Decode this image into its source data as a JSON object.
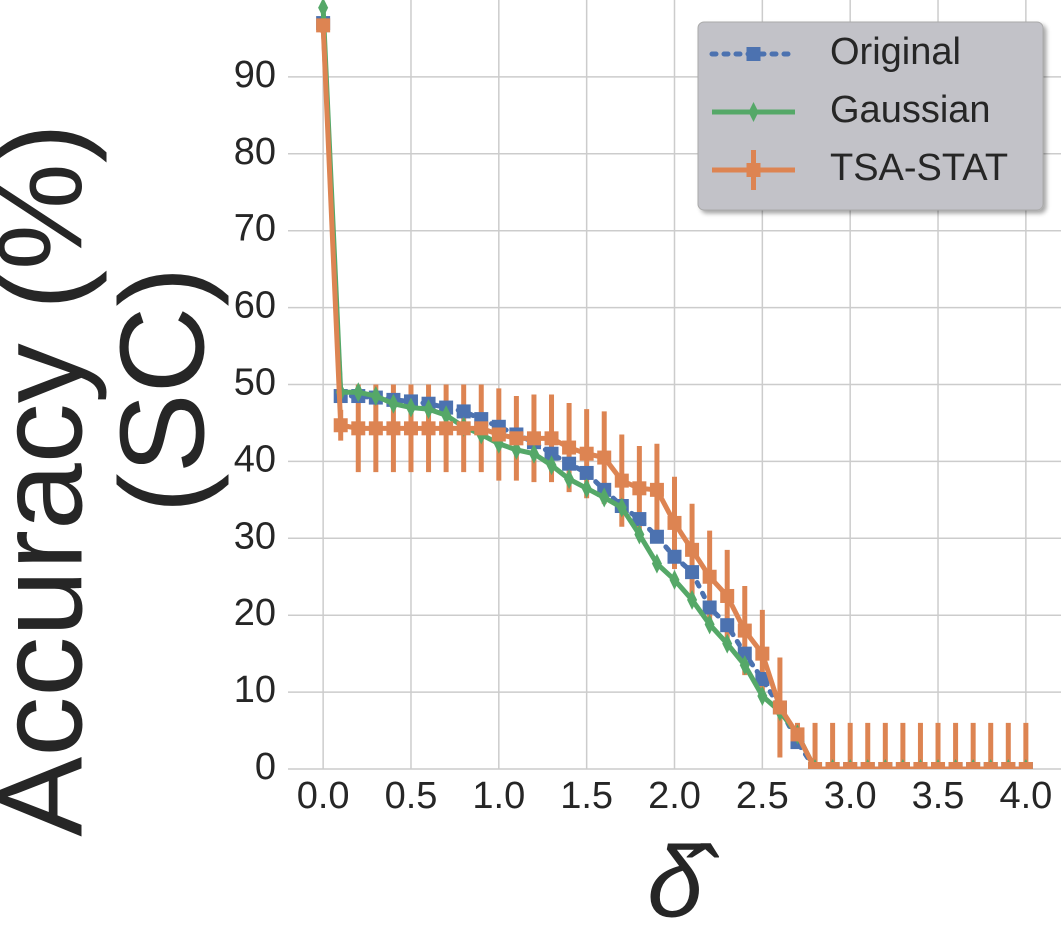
{
  "chart_data": {
    "type": "line",
    "ylabel": [
      "Accuracy (%)",
      "(SC)"
    ],
    "xlabel": "δ̂",
    "x": [
      0,
      0.1,
      0.2,
      0.3,
      0.4,
      0.5,
      0.6,
      0.7,
      0.8,
      0.9,
      1.0,
      1.1,
      1.2,
      1.3,
      1.4,
      1.5,
      1.6,
      1.7,
      1.8,
      1.9,
      2.0,
      2.1,
      2.2,
      2.3,
      2.4,
      2.5,
      2.6,
      2.7,
      2.8,
      2.9,
      3.0,
      3.1,
      3.2,
      3.3,
      3.4,
      3.5,
      3.6,
      3.7,
      3.8,
      3.9,
      4.0
    ],
    "series": [
      {
        "name": "Original",
        "color": "#4c72b0",
        "linestyle": "dotted",
        "marker": "square",
        "values": [
          97,
          48.5,
          48.5,
          48.3,
          48,
          47.8,
          47.5,
          47,
          46.5,
          45.5,
          44.5,
          43.5,
          42.5,
          41,
          39.7,
          38.5,
          36.3,
          34.2,
          32.5,
          30.2,
          27.6,
          25.6,
          21,
          18.7,
          15,
          11.7,
          8,
          3.5,
          0,
          0,
          0,
          0,
          0,
          0,
          0,
          0,
          0,
          0,
          0,
          0,
          0
        ]
      },
      {
        "name": "Gaussian",
        "color": "#55a868",
        "linestyle": "solid",
        "marker": "thin_diamond",
        "values": [
          99,
          49,
          49,
          48.5,
          47.5,
          47,
          46.8,
          46,
          44.5,
          43.5,
          42.3,
          41.5,
          41,
          39.5,
          37.7,
          36.5,
          35.3,
          34,
          30.5,
          26.7,
          24.6,
          22,
          18.8,
          16.3,
          13.5,
          9.5,
          7.5,
          4.5,
          0,
          0,
          0,
          0,
          0,
          0,
          0,
          0,
          0,
          0,
          0,
          0,
          0
        ]
      },
      {
        "name": "TSA-STAT",
        "color": "#dd8452",
        "linestyle": "solid",
        "marker": "square",
        "values": [
          96.7,
          44.7,
          44.3,
          44.3,
          44.3,
          44.3,
          44.3,
          44.3,
          44.3,
          44.3,
          43.5,
          43,
          43,
          43,
          41.8,
          41,
          40.5,
          37.5,
          36.5,
          36.3,
          32,
          28.5,
          25,
          22.5,
          18,
          15,
          8,
          4.5,
          0,
          0,
          0,
          0,
          0,
          0,
          0,
          0,
          0,
          0,
          0,
          0,
          0
        ],
        "errors": [
          1,
          2,
          5.7,
          5.7,
          5.7,
          5.7,
          5.7,
          5.7,
          5.7,
          5.7,
          6,
          5.5,
          5.7,
          5.7,
          5.8,
          5.8,
          6,
          6,
          5.5,
          6,
          6,
          6,
          6,
          6,
          5.8,
          5.7,
          6.5,
          1.5,
          6,
          6,
          6,
          6,
          6,
          6,
          6,
          6,
          6,
          6,
          6,
          6,
          6
        ]
      }
    ],
    "xlim": [
      -0.2,
      4.2
    ],
    "ylim": [
      0,
      100
    ],
    "xticks": [
      {
        "value": 0,
        "label": "0.0"
      },
      0.5,
      {
        "value": 1,
        "label": "1.0"
      },
      1.5,
      {
        "value": 2,
        "label": "2.0"
      },
      2.5,
      {
        "value": 3,
        "label": "3.0"
      },
      3.5,
      {
        "value": 4,
        "label": "4.0"
      }
    ],
    "yticks": [
      0,
      10,
      20,
      30,
      40,
      50,
      60,
      70,
      80,
      90
    ],
    "grid": true,
    "legend": "upper right"
  }
}
